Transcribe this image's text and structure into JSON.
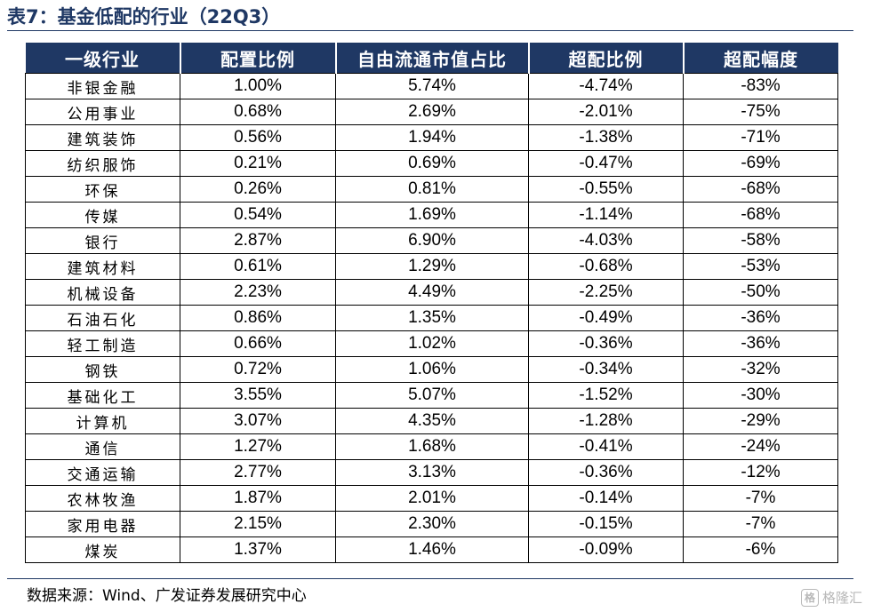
{
  "title": "表7：基金低配的行业（22Q3）",
  "columns": [
    "一级行业",
    "配置比例",
    "自由流通市值占比",
    "超配比例",
    "超配幅度"
  ],
  "rows": [
    [
      "非银金融",
      "1.00%",
      "5.74%",
      "-4.74%",
      "-83%"
    ],
    [
      "公用事业",
      "0.68%",
      "2.69%",
      "-2.01%",
      "-75%"
    ],
    [
      "建筑装饰",
      "0.56%",
      "1.94%",
      "-1.38%",
      "-71%"
    ],
    [
      "纺织服饰",
      "0.21%",
      "0.69%",
      "-0.47%",
      "-69%"
    ],
    [
      "环保",
      "0.26%",
      "0.81%",
      "-0.55%",
      "-68%"
    ],
    [
      "传媒",
      "0.54%",
      "1.69%",
      "-1.14%",
      "-68%"
    ],
    [
      "银行",
      "2.87%",
      "6.90%",
      "-4.03%",
      "-58%"
    ],
    [
      "建筑材料",
      "0.61%",
      "1.29%",
      "-0.68%",
      "-53%"
    ],
    [
      "机械设备",
      "2.23%",
      "4.49%",
      "-2.25%",
      "-50%"
    ],
    [
      "石油石化",
      "0.86%",
      "1.35%",
      "-0.49%",
      "-36%"
    ],
    [
      "轻工制造",
      "0.66%",
      "1.02%",
      "-0.36%",
      "-36%"
    ],
    [
      "钢铁",
      "0.72%",
      "1.06%",
      "-0.34%",
      "-32%"
    ],
    [
      "基础化工",
      "3.55%",
      "5.07%",
      "-1.52%",
      "-30%"
    ],
    [
      "计算机",
      "3.07%",
      "4.35%",
      "-1.28%",
      "-29%"
    ],
    [
      "通信",
      "1.27%",
      "1.68%",
      "-0.41%",
      "-24%"
    ],
    [
      "交通运输",
      "2.77%",
      "3.13%",
      "-0.36%",
      "-12%"
    ],
    [
      "农林牧渔",
      "1.87%",
      "2.01%",
      "-0.14%",
      "-7%"
    ],
    [
      "家用电器",
      "2.15%",
      "2.30%",
      "-0.15%",
      "-7%"
    ],
    [
      "煤炭",
      "1.37%",
      "1.46%",
      "-0.09%",
      "-6%"
    ]
  ],
  "source": "数据来源：Wind、广发证券发展研究中心",
  "watermark": {
    "icon": "gelonghui-logo-icon",
    "logo_text": "格",
    "text": "格隆汇"
  },
  "colors": {
    "header_bg": "#1f3864",
    "header_text": "#ffffff",
    "title": "#1f3864"
  }
}
